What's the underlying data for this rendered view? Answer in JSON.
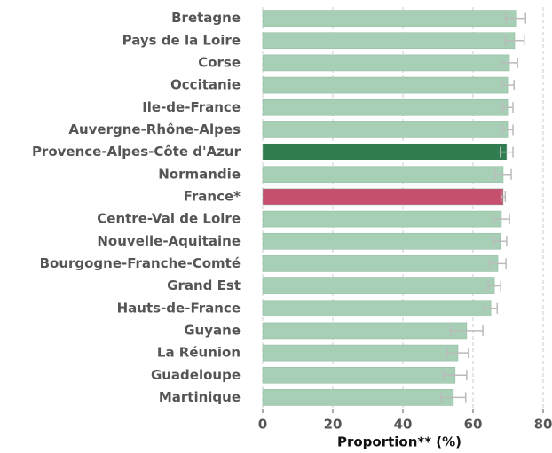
{
  "chart_data": {
    "type": "barh",
    "xlabel": "Proportion** (%)",
    "categories": [
      "Bretagne",
      "Pays de la Loire",
      "Corse",
      "Occitanie",
      "Ile-de-France",
      "Auvergne-Rhône-Alpes",
      "Provence-Alpes-Côte d'Azur",
      "Normandie",
      "France*",
      "Centre-Val de Loire",
      "Nouvelle-Aquitaine",
      "Bourgogne-Franche-Comté",
      "Grand Est",
      "Hauts-de-France",
      "Guyane",
      "La Réunion",
      "Guadeloupe",
      "Martinique"
    ],
    "values": [
      72.2,
      71.9,
      70.4,
      69.9,
      69.9,
      69.9,
      69.6,
      68.6,
      68.6,
      68.1,
      67.8,
      67.1,
      66.1,
      65.1,
      58.2,
      55.7,
      54.9,
      54.4
    ],
    "errors": [
      2.8,
      2.7,
      2.3,
      1.8,
      1.5,
      1.5,
      1.8,
      2.3,
      0.6,
      2.3,
      1.8,
      2.3,
      1.8,
      1.8,
      4.6,
      3.0,
      3.3,
      3.5
    ],
    "colors": [
      "#a6cfb6",
      "#a6cfb6",
      "#a6cfb6",
      "#a6cfb6",
      "#a6cfb6",
      "#a6cfb6",
      "#2f7d50",
      "#a6cfb6",
      "#c64f6e",
      "#a6cfb6",
      "#a6cfb6",
      "#a6cfb6",
      "#a6cfb6",
      "#a6cfb6",
      "#a6cfb6",
      "#a6cfb6",
      "#a6cfb6",
      "#a6cfb6"
    ],
    "error_color": "#bbbbbb",
    "xlim": [
      0,
      80
    ],
    "xticks": [
      0,
      20,
      40,
      60,
      80
    ],
    "grid": true
  }
}
